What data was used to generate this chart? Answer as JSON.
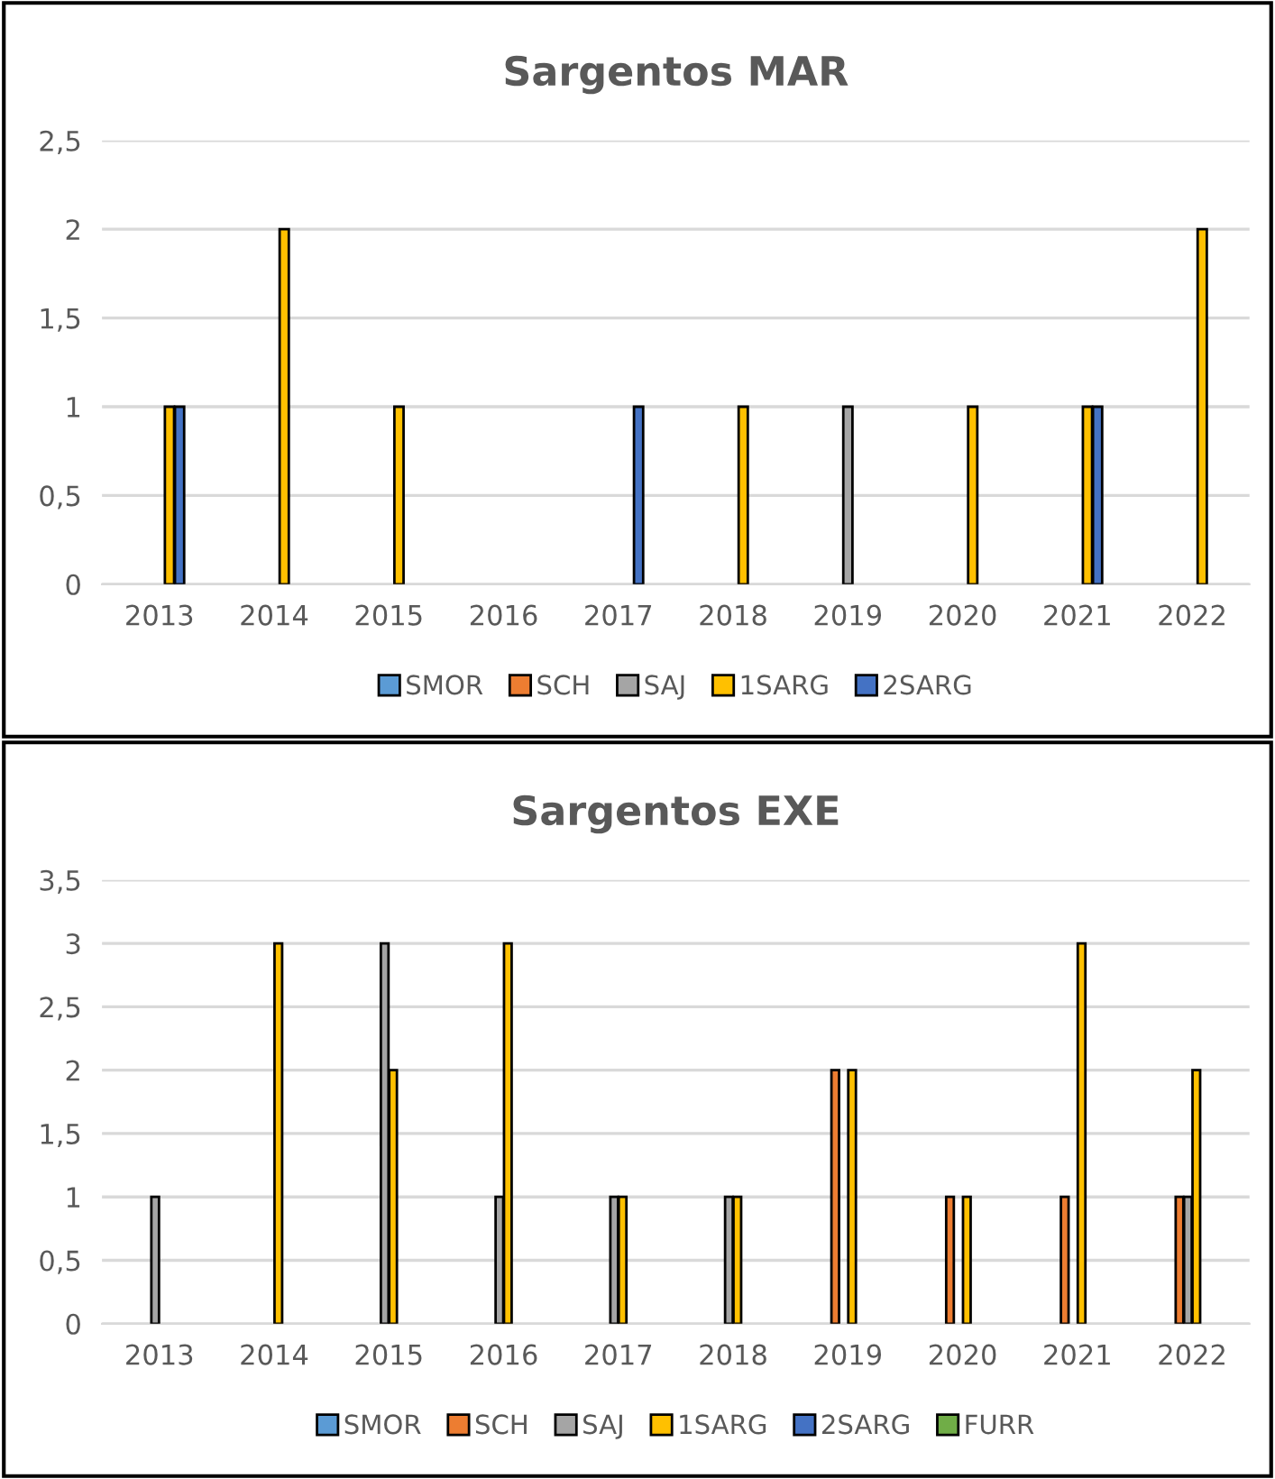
{
  "chart_data": [
    {
      "type": "bar",
      "title": "Sargentos MAR",
      "categories": [
        "2013",
        "2014",
        "2015",
        "2016",
        "2017",
        "2018",
        "2019",
        "2020",
        "2021",
        "2022"
      ],
      "series": [
        {
          "name": "SMOR",
          "color": "#5b9bd5",
          "values": [
            0,
            0,
            0,
            0,
            0,
            0,
            0,
            0,
            0,
            0
          ]
        },
        {
          "name": "SCH",
          "color": "#ed7d31",
          "values": [
            0,
            0,
            0,
            0,
            0,
            0,
            0,
            0,
            0,
            0
          ]
        },
        {
          "name": "SAJ",
          "color": "#a5a5a5",
          "values": [
            0,
            0,
            0,
            0,
            0,
            0,
            1,
            0,
            0,
            0
          ]
        },
        {
          "name": "1SARG",
          "color": "#ffc000",
          "values": [
            1,
            2,
            1,
            0,
            0,
            1,
            0,
            1,
            1,
            2
          ]
        },
        {
          "name": "2SARG",
          "color": "#4472c4",
          "values": [
            1,
            0,
            0,
            0,
            1,
            0,
            0,
            0,
            1,
            0
          ]
        }
      ],
      "ylim": [
        0,
        2.5
      ],
      "yticks": [
        0,
        {
          "value": 0.5,
          "label": "0,5"
        },
        1,
        {
          "value": 1.5,
          "label": "1,5"
        },
        2,
        {
          "value": 2.5,
          "label": "2,5"
        }
      ],
      "grid": "y",
      "legend": "bottom"
    },
    {
      "type": "bar",
      "title": "Sargentos EXE",
      "categories": [
        "2013",
        "2014",
        "2015",
        "2016",
        "2017",
        "2018",
        "2019",
        "2020",
        "2021",
        "2022"
      ],
      "series": [
        {
          "name": "SMOR",
          "color": "#5b9bd5",
          "values": [
            0,
            0,
            0,
            0,
            0,
            0,
            0,
            0,
            0,
            0
          ]
        },
        {
          "name": "SCH",
          "color": "#ed7d31",
          "values": [
            0,
            0,
            0,
            0,
            0,
            0,
            2,
            1,
            1,
            1
          ]
        },
        {
          "name": "SAJ",
          "color": "#a5a5a5",
          "values": [
            1,
            0,
            3,
            1,
            1,
            1,
            0,
            0,
            0,
            1
          ]
        },
        {
          "name": "1SARG",
          "color": "#ffc000",
          "values": [
            0,
            3,
            2,
            3,
            1,
            1,
            2,
            1,
            3,
            2
          ]
        },
        {
          "name": "2SARG",
          "color": "#4472c4",
          "values": [
            0,
            0,
            0,
            0,
            0,
            0,
            0,
            0,
            0,
            0
          ]
        },
        {
          "name": "FURR",
          "color": "#70ad47",
          "values": [
            0,
            0,
            0,
            0,
            0,
            0,
            0,
            0,
            0,
            0
          ]
        }
      ],
      "ylim": [
        0,
        3.5
      ],
      "yticks": [
        0,
        {
          "value": 0.5,
          "label": "0,5"
        },
        1,
        {
          "value": 1.5,
          "label": "1,5"
        },
        2,
        {
          "value": 2.5,
          "label": "2,5"
        },
        3,
        {
          "value": 3.5,
          "label": "3,5"
        }
      ],
      "grid": "y",
      "legend": "bottom"
    }
  ]
}
